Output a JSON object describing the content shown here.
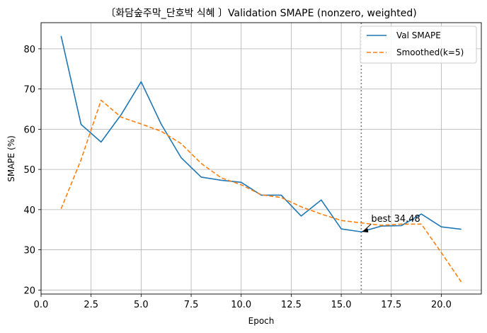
{
  "chart_data": {
    "type": "line",
    "title": "〔화담숲주막_단호박 식혜 〕Validation SMAPE (nonzero, weighted)",
    "xlabel": "Epoch",
    "ylabel": "SMAPE (%)",
    "xlim": [
      0,
      22
    ],
    "ylim": [
      19,
      86.5
    ],
    "x_ticks": [
      0,
      2.5,
      5,
      7.5,
      10,
      12.5,
      15,
      17.5,
      20
    ],
    "x_tick_labels": [
      "0.0",
      "2.5",
      "5.0",
      "7.5",
      "10.0",
      "12.5",
      "15.0",
      "17.5",
      "20.0"
    ],
    "y_ticks": [
      20,
      30,
      40,
      50,
      60,
      70,
      80
    ],
    "y_tick_labels": [
      "20",
      "30",
      "40",
      "50",
      "60",
      "70",
      "80"
    ],
    "grid": true,
    "legend_position": "top-right",
    "x": [
      1,
      2,
      3,
      4,
      5,
      6,
      7,
      8,
      9,
      10,
      11,
      12,
      13,
      14,
      15,
      16,
      17,
      18,
      19,
      20,
      21
    ],
    "series": [
      {
        "name": "Val SMAPE",
        "color": "#1f77b4",
        "style": "solid",
        "values": [
          83.2,
          61.2,
          56.8,
          63.6,
          71.8,
          61.3,
          52.9,
          48.1,
          47.3,
          46.8,
          43.6,
          43.6,
          38.4,
          42.4,
          35.2,
          34.48,
          35.9,
          36.0,
          38.9,
          35.7,
          35.1
        ]
      },
      {
        "name": "Smoothed(k=5)",
        "color": "#ff7f0e",
        "style": "dashed",
        "values": [
          40.2,
          52.4,
          67.2,
          63.0,
          61.3,
          59.5,
          56.4,
          51.5,
          47.9,
          46.2,
          43.7,
          43.0,
          40.7,
          38.9,
          37.3,
          36.7,
          36.1,
          36.4,
          36.4,
          29.3,
          22.0
        ]
      }
    ],
    "vline": {
      "x": 16,
      "color": "#808080",
      "style": "dotted"
    },
    "annotation": {
      "text": "best 34.48",
      "x": 16,
      "y": 34.48
    }
  }
}
